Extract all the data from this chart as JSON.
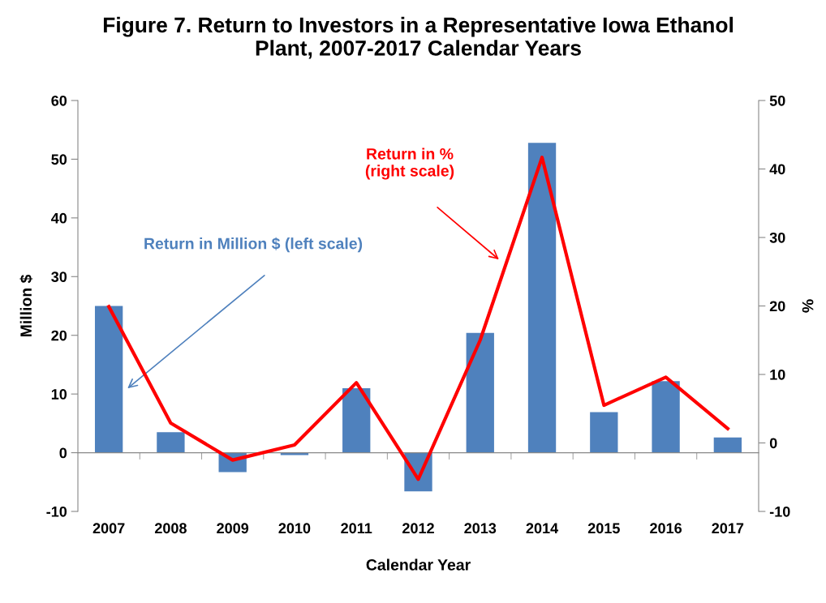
{
  "chart_data": {
    "type": "bar",
    "title": "Figure 7. Return to Investors in a Representative Iowa Ethanol\nPlant, 2007-2017 Calendar Years",
    "xlabel": "Calendar Year",
    "ylabel": "Million $",
    "y2label": "%",
    "categories": [
      "2007",
      "2008",
      "2009",
      "2010",
      "2011",
      "2012",
      "2013",
      "2014",
      "2015",
      "2016",
      "2017"
    ],
    "series": [
      {
        "color": "#4f81bd",
        "values": [
          25.0,
          3.5,
          -3.3,
          -0.4,
          11.0,
          -6.6,
          20.4,
          52.8,
          6.9,
          12.2,
          2.6
        ]
      },
      {
        "type": "line",
        "axis": "y2",
        "color": "#ff0000",
        "values": [
          19.9,
          2.9,
          -2.5,
          -0.3,
          8.8,
          -5.3,
          15.0,
          41.7,
          5.5,
          9.6,
          2.1
        ]
      }
    ],
    "ylim": [
      -10,
      60
    ],
    "yticks": [
      -10,
      0,
      10,
      20,
      30,
      40,
      50,
      60
    ],
    "y2lim": [
      -10,
      50
    ],
    "y2ticks": [
      -10,
      0,
      10,
      20,
      30,
      40,
      50
    ],
    "annotations": [
      "Return in Million $ (left scale)",
      "Return in %\n(right scale)"
    ],
    "legend": false,
    "marker": "none",
    "line_style": "solid"
  }
}
